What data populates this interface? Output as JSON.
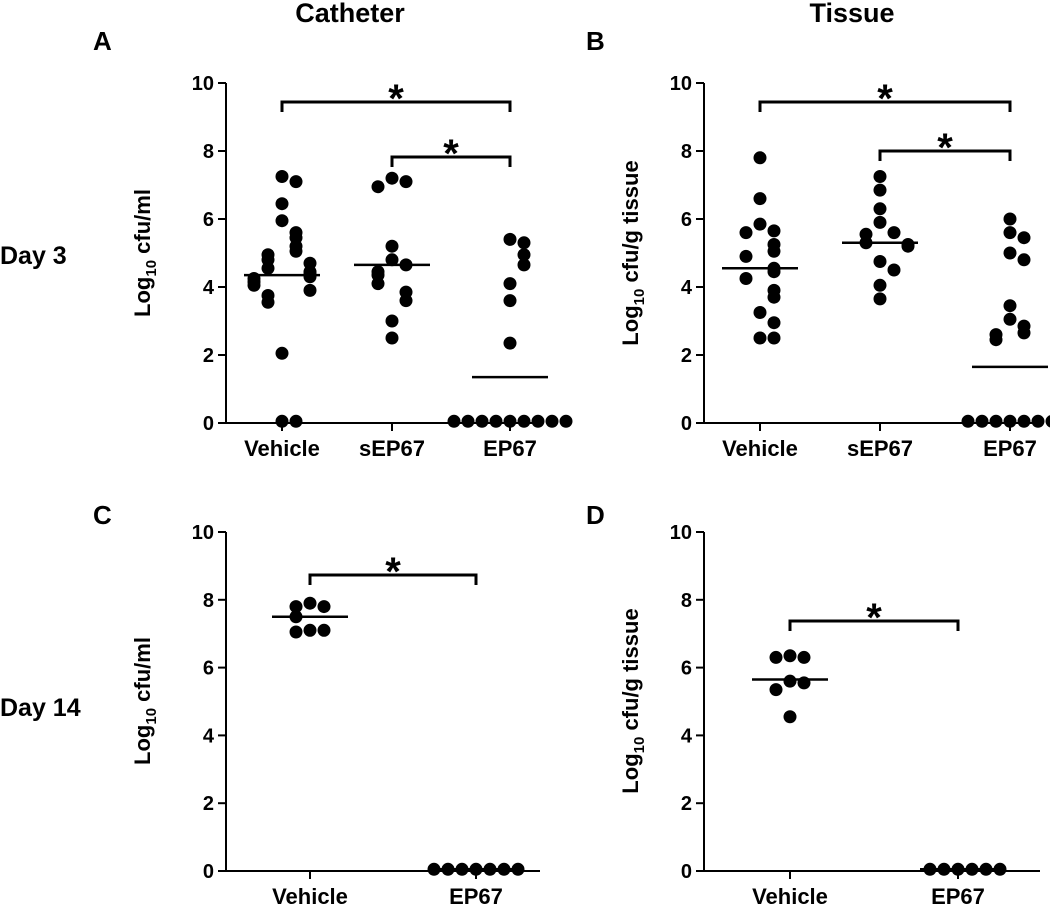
{
  "figure": {
    "column_headers": [
      "Catheter",
      "Tissue"
    ],
    "row_labels": [
      "Day 3",
      "Day 14"
    ]
  },
  "chart_data": [
    {
      "panel": "A",
      "type": "scatter",
      "ylabel_main": "Log",
      "ylabel_sub": "10",
      "ylabel_rest": " cfu/ml",
      "ylim": [
        0,
        10
      ],
      "yticks": [
        "0",
        "2",
        "4",
        "6",
        "8",
        "10"
      ],
      "categories": [
        "Vehicle",
        "sEP67",
        "EP67"
      ],
      "means": [
        4.35,
        4.65,
        1.35
      ],
      "points": [
        [
          7.25,
          7.1,
          6.45,
          5.95,
          5.6,
          5.45,
          5.2,
          5.05,
          4.95,
          4.8,
          4.7,
          4.55,
          4.45,
          4.4,
          4.3,
          4.25,
          4.15,
          4.05,
          3.9,
          3.75,
          3.55,
          2.05,
          0.05,
          0.05
        ],
        [
          7.2,
          7.1,
          6.95,
          5.2,
          4.8,
          4.65,
          4.45,
          4.35,
          4.1,
          3.85,
          3.6,
          3.0,
          2.5
        ],
        [
          5.4,
          5.3,
          4.95,
          4.65,
          4.1,
          3.6,
          2.35,
          0.05,
          0.05,
          0.05,
          0.05,
          0.05,
          0.05,
          0.05,
          0.05,
          0.05
        ]
      ],
      "comparisons": [
        {
          "from": 0,
          "to": 2,
          "label": "*"
        },
        {
          "from": 1,
          "to": 2,
          "label": "*"
        }
      ]
    },
    {
      "panel": "B",
      "type": "scatter",
      "ylabel_main": "Log",
      "ylabel_sub": "10",
      "ylabel_rest": " cfu/g tissue",
      "ylim": [
        0,
        10
      ],
      "yticks": [
        "0",
        "2",
        "4",
        "6",
        "8",
        "10"
      ],
      "categories": [
        "Vehicle",
        "sEP67",
        "EP67"
      ],
      "means": [
        4.55,
        5.3,
        1.65
      ],
      "points": [
        [
          7.8,
          6.6,
          5.85,
          5.65,
          5.6,
          5.25,
          5.05,
          4.9,
          4.55,
          4.45,
          4.25,
          3.9,
          3.7,
          3.25,
          2.95,
          2.5,
          2.5
        ],
        [
          7.25,
          6.85,
          6.3,
          5.9,
          5.6,
          5.55,
          5.3,
          5.25,
          5.2,
          4.75,
          4.5,
          4.05,
          3.65
        ],
        [
          6.0,
          5.6,
          5.45,
          5.0,
          4.8,
          3.45,
          3.05,
          2.85,
          2.65,
          2.6,
          2.45,
          0.05,
          0.05,
          0.05,
          0.05,
          0.05,
          0.05,
          0.05,
          0.05
        ]
      ],
      "comparisons": [
        {
          "from": 0,
          "to": 2,
          "label": "*"
        },
        {
          "from": 1,
          "to": 2,
          "label": "*"
        }
      ]
    },
    {
      "panel": "C",
      "type": "scatter",
      "ylabel_main": "Log",
      "ylabel_sub": "10",
      "ylabel_rest": " cfu/ml",
      "ylim": [
        0,
        10
      ],
      "yticks": [
        "0",
        "2",
        "4",
        "6",
        "8",
        "10"
      ],
      "categories": [
        "Vehicle",
        "EP67"
      ],
      "means": [
        7.5,
        0.05
      ],
      "points": [
        [
          7.9,
          7.8,
          7.8,
          7.5,
          7.1,
          7.1,
          7.05
        ],
        [
          0.05,
          0.05,
          0.05,
          0.05,
          0.05,
          0.05,
          0.05
        ]
      ],
      "comparisons": [
        {
          "from": 0,
          "to": 1,
          "label": "*"
        }
      ]
    },
    {
      "panel": "D",
      "type": "scatter",
      "ylabel_main": "Log",
      "ylabel_sub": "10",
      "ylabel_rest": " cfu/g tissue",
      "ylim": [
        0,
        10
      ],
      "yticks": [
        "0",
        "2",
        "4",
        "6",
        "8",
        "10"
      ],
      "categories": [
        "Vehicle",
        "EP67"
      ],
      "means": [
        5.65,
        0.05
      ],
      "points": [
        [
          6.35,
          6.3,
          6.3,
          5.6,
          5.55,
          5.35,
          4.55
        ],
        [
          0.05,
          0.05,
          0.05,
          0.05,
          0.05,
          0.05
        ]
      ],
      "comparisons": [
        {
          "from": 0,
          "to": 1,
          "label": "*"
        }
      ]
    }
  ]
}
